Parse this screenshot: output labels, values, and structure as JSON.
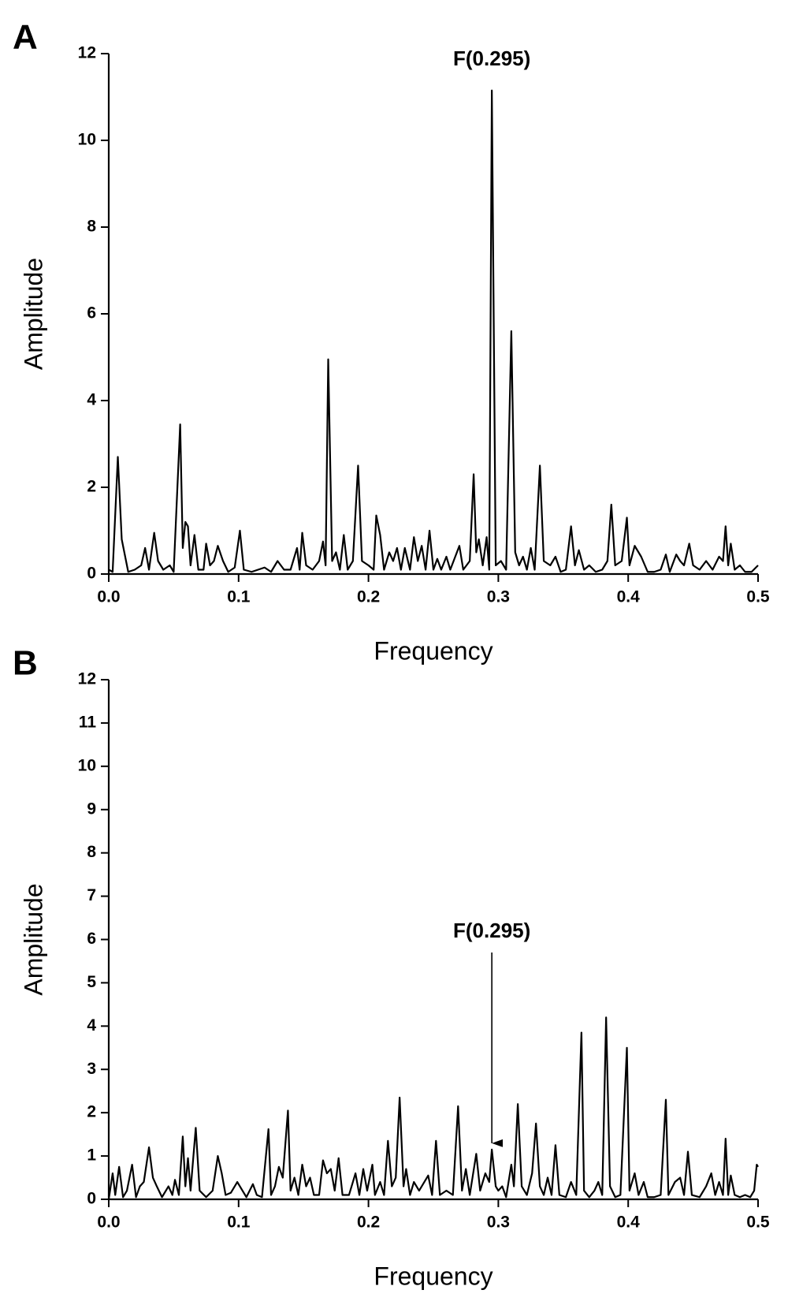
{
  "chart_data": [
    {
      "type": "line",
      "panel_label": "A",
      "annotation": {
        "text": "F(0.295)",
        "x": 0.295,
        "arrow": false
      },
      "x_label": "Frequency",
      "y_label": "Amplitude",
      "color": "#000000",
      "xlim": [
        0,
        0.5
      ],
      "xticks": [
        {
          "value": 0,
          "label": "0.0"
        },
        0.1,
        0.2,
        0.3,
        0.4,
        0.5
      ],
      "ylim": [
        0,
        12
      ],
      "yticks": [
        0,
        2,
        4,
        6,
        8,
        10,
        12
      ],
      "x": [
        0,
        0.003,
        0.007,
        0.01,
        0.015,
        0.02,
        0.025,
        0.028,
        0.031,
        0.035,
        0.038,
        0.042,
        0.047,
        0.05,
        0.055,
        0.057,
        0.059,
        0.061,
        0.063,
        0.066,
        0.069,
        0.073,
        0.075,
        0.078,
        0.081,
        0.084,
        0.088,
        0.092,
        0.097,
        0.101,
        0.104,
        0.11,
        0.115,
        0.12,
        0.125,
        0.13,
        0.135,
        0.14,
        0.145,
        0.147,
        0.149,
        0.152,
        0.157,
        0.162,
        0.165,
        0.167,
        0.169,
        0.172,
        0.175,
        0.178,
        0.181,
        0.184,
        0.188,
        0.192,
        0.195,
        0.2,
        0.204,
        0.206,
        0.209,
        0.212,
        0.216,
        0.219,
        0.222,
        0.225,
        0.228,
        0.232,
        0.235,
        0.238,
        0.241,
        0.244,
        0.247,
        0.25,
        0.253,
        0.256,
        0.26,
        0.263,
        0.27,
        0.273,
        0.278,
        0.281,
        0.283,
        0.285,
        0.288,
        0.291,
        0.293,
        0.295,
        0.298,
        0.302,
        0.306,
        0.31,
        0.313,
        0.316,
        0.319,
        0.322,
        0.325,
        0.328,
        0.332,
        0.335,
        0.34,
        0.344,
        0.348,
        0.352,
        0.356,
        0.359,
        0.362,
        0.366,
        0.37,
        0.375,
        0.38,
        0.384,
        0.387,
        0.39,
        0.395,
        0.399,
        0.401,
        0.405,
        0.41,
        0.415,
        0.42,
        0.425,
        0.429,
        0.432,
        0.437,
        0.44,
        0.443,
        0.447,
        0.45,
        0.455,
        0.46,
        0.465,
        0.47,
        0.473,
        0.475,
        0.477,
        0.479,
        0.482,
        0.486,
        0.49,
        0.495,
        0.5
      ],
      "values": [
        0.1,
        0.05,
        2.7,
        0.8,
        0.05,
        0.1,
        0.2,
        0.6,
        0.1,
        0.95,
        0.3,
        0.1,
        0.2,
        0.05,
        3.45,
        0.6,
        1.2,
        1.1,
        0.2,
        0.9,
        0.1,
        0.1,
        0.7,
        0.2,
        0.3,
        0.65,
        0.3,
        0.05,
        0.15,
        1.0,
        0.1,
        0.05,
        0.1,
        0.15,
        0.05,
        0.3,
        0.1,
        0.1,
        0.6,
        0.1,
        0.95,
        0.2,
        0.1,
        0.3,
        0.75,
        0.2,
        4.95,
        0.3,
        0.5,
        0.1,
        0.9,
        0.1,
        0.3,
        2.5,
        0.3,
        0.2,
        0.1,
        1.35,
        0.9,
        0.1,
        0.5,
        0.3,
        0.6,
        0.1,
        0.6,
        0.1,
        0.85,
        0.3,
        0.65,
        0.1,
        1.0,
        0.1,
        0.35,
        0.1,
        0.4,
        0.1,
        0.65,
        0.1,
        0.3,
        2.3,
        0.5,
        0.8,
        0.2,
        0.85,
        0.1,
        11.15,
        0.2,
        0.3,
        0.1,
        5.6,
        0.5,
        0.2,
        0.4,
        0.1,
        0.6,
        0.1,
        2.5,
        0.3,
        0.2,
        0.4,
        0.05,
        0.1,
        1.1,
        0.2,
        0.55,
        0.1,
        0.2,
        0.05,
        0.1,
        0.3,
        1.6,
        0.2,
        0.3,
        1.3,
        0.2,
        0.65,
        0.4,
        0.05,
        0.05,
        0.1,
        0.45,
        0.05,
        0.45,
        0.3,
        0.2,
        0.7,
        0.2,
        0.1,
        0.3,
        0.1,
        0.4,
        0.3,
        1.1,
        0.2,
        0.7,
        0.1,
        0.2,
        0.05,
        0.05,
        0.2
      ]
    },
    {
      "type": "line",
      "panel_label": "B",
      "annotation": {
        "text": "F(0.295)",
        "x": 0.295,
        "arrow": true
      },
      "x_label": "Frequency",
      "y_label": "Amplitude",
      "color": "#000000",
      "xlim": [
        0,
        0.5
      ],
      "xticks": [
        {
          "value": 0,
          "label": "0.0"
        },
        0.1,
        0.2,
        0.3,
        0.4,
        0.5
      ],
      "ylim": [
        0,
        12
      ],
      "yticks": [
        0,
        1,
        2,
        3,
        4,
        5,
        6,
        7,
        8,
        9,
        10,
        11,
        12
      ],
      "x": [
        0,
        0.003,
        0.005,
        0.008,
        0.011,
        0.014,
        0.018,
        0.021,
        0.024,
        0.027,
        0.031,
        0.034,
        0.037,
        0.041,
        0.046,
        0.049,
        0.051,
        0.054,
        0.057,
        0.059,
        0.061,
        0.063,
        0.067,
        0.07,
        0.075,
        0.08,
        0.084,
        0.087,
        0.09,
        0.094,
        0.099,
        0.103,
        0.106,
        0.111,
        0.114,
        0.118,
        0.123,
        0.125,
        0.128,
        0.131,
        0.134,
        0.138,
        0.14,
        0.143,
        0.146,
        0.149,
        0.152,
        0.155,
        0.158,
        0.162,
        0.165,
        0.168,
        0.171,
        0.174,
        0.177,
        0.18,
        0.185,
        0.19,
        0.193,
        0.196,
        0.199,
        0.203,
        0.205,
        0.209,
        0.212,
        0.215,
        0.218,
        0.221,
        0.224,
        0.227,
        0.229,
        0.232,
        0.235,
        0.239,
        0.242,
        0.246,
        0.249,
        0.252,
        0.255,
        0.26,
        0.265,
        0.269,
        0.272,
        0.275,
        0.278,
        0.283,
        0.286,
        0.29,
        0.293,
        0.295,
        0.298,
        0.3,
        0.303,
        0.306,
        0.31,
        0.312,
        0.315,
        0.318,
        0.322,
        0.326,
        0.329,
        0.332,
        0.335,
        0.338,
        0.341,
        0.344,
        0.347,
        0.352,
        0.356,
        0.36,
        0.364,
        0.366,
        0.37,
        0.374,
        0.377,
        0.38,
        0.383,
        0.386,
        0.39,
        0.394,
        0.399,
        0.401,
        0.405,
        0.408,
        0.412,
        0.415,
        0.42,
        0.425,
        0.429,
        0.431,
        0.436,
        0.44,
        0.443,
        0.446,
        0.449,
        0.455,
        0.46,
        0.464,
        0.467,
        0.47,
        0.473,
        0.475,
        0.477,
        0.479,
        0.482,
        0.486,
        0.49,
        0.494,
        0.497,
        0.499,
        0.5
      ],
      "values": [
        0,
        0.6,
        0.1,
        0.75,
        0.05,
        0.2,
        0.8,
        0.05,
        0.3,
        0.4,
        1.2,
        0.5,
        0.3,
        0.05,
        0.3,
        0.1,
        0.45,
        0.1,
        1.45,
        0.3,
        0.95,
        0.2,
        1.65,
        0.2,
        0.05,
        0.2,
        1.0,
        0.6,
        0.1,
        0.15,
        0.4,
        0.2,
        0.05,
        0.35,
        0.1,
        0.05,
        1.62,
        0.1,
        0.3,
        0.75,
        0.5,
        2.05,
        0.2,
        0.5,
        0.1,
        0.8,
        0.3,
        0.5,
        0.1,
        0.1,
        0.9,
        0.6,
        0.7,
        0.2,
        0.95,
        0.1,
        0.1,
        0.6,
        0.1,
        0.7,
        0.2,
        0.8,
        0.1,
        0.4,
        0.1,
        1.35,
        0.3,
        0.5,
        2.35,
        0.3,
        0.7,
        0.1,
        0.4,
        0.2,
        0.35,
        0.55,
        0.1,
        1.35,
        0.1,
        0.2,
        0.1,
        2.15,
        0.2,
        0.7,
        0.1,
        1.05,
        0.2,
        0.6,
        0.4,
        1.15,
        0.3,
        0.2,
        0.3,
        0.05,
        0.8,
        0.3,
        2.2,
        0.3,
        0.1,
        0.6,
        1.75,
        0.3,
        0.1,
        0.5,
        0.1,
        1.25,
        0.1,
        0.05,
        0.4,
        0.1,
        3.85,
        0.2,
        0.05,
        0.2,
        0.4,
        0.1,
        4.2,
        0.3,
        0.05,
        0.1,
        3.5,
        0.2,
        0.6,
        0.1,
        0.4,
        0.05,
        0.05,
        0.1,
        2.3,
        0.1,
        0.4,
        0.5,
        0.1,
        1.1,
        0.1,
        0.05,
        0.3,
        0.6,
        0.1,
        0.4,
        0.1,
        1.4,
        0.1,
        0.55,
        0.1,
        0.05,
        0.1,
        0.05,
        0.2,
        0.8,
        0.75
      ]
    }
  ]
}
